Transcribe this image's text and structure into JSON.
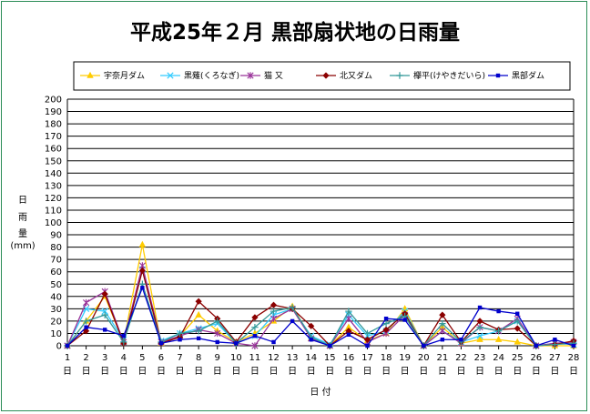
{
  "chart_data": {
    "type": "line",
    "title": "平成25年２月  黒部扇状地の日雨量",
    "xlabel": "日 付",
    "ylabel": [
      "日",
      "雨",
      "量",
      "(mm)"
    ],
    "x_unit": "日",
    "categories": [
      "1",
      "2",
      "3",
      "4",
      "5",
      "6",
      "7",
      "8",
      "9",
      "10",
      "11",
      "12",
      "13",
      "14",
      "15",
      "16",
      "17",
      "18",
      "19",
      "20",
      "21",
      "22",
      "23",
      "24",
      "25",
      "26",
      "27",
      "28"
    ],
    "yticks": [
      0,
      10,
      20,
      30,
      40,
      50,
      60,
      70,
      80,
      90,
      100,
      110,
      120,
      130,
      140,
      150,
      160,
      170,
      180,
      190,
      200
    ],
    "ylim": [
      0,
      200
    ],
    "grid": true,
    "legend_position": "top",
    "series": [
      {
        "name": "宇奈月ダム",
        "color": "#ffcc00",
        "marker": "triangle",
        "values": [
          0,
          20,
          40,
          3,
          82,
          2,
          8,
          25,
          12,
          3,
          10,
          20,
          32,
          6,
          0,
          15,
          4,
          10,
          30,
          0,
          15,
          2,
          5,
          5,
          3,
          0,
          0,
          0
        ]
      },
      {
        "name": "黒薙(くろなぎ)",
        "color": "#33ccff",
        "marker": "x",
        "values": [
          0,
          30,
          28,
          5,
          62,
          4,
          10,
          14,
          18,
          2,
          8,
          25,
          30,
          8,
          1,
          25,
          8,
          12,
          28,
          0,
          12,
          3,
          8,
          12,
          20,
          0,
          2,
          1
        ]
      },
      {
        "name": "猫 又",
        "color": "#993399",
        "marker": "star",
        "values": [
          0,
          35,
          44,
          3,
          65,
          3,
          8,
          13,
          10,
          2,
          0,
          22,
          30,
          6,
          0,
          22,
          3,
          10,
          25,
          0,
          12,
          2,
          15,
          12,
          22,
          0,
          2,
          3
        ]
      },
      {
        "name": "北又ダム",
        "color": "#8b0000",
        "marker": "diamond",
        "values": [
          0,
          12,
          42,
          2,
          61,
          2,
          7,
          36,
          22,
          3,
          23,
          33,
          30,
          16,
          0,
          12,
          5,
          13,
          26,
          0,
          25,
          3,
          20,
          13,
          14,
          0,
          1,
          4
        ]
      },
      {
        "name": "欅平(けやきだいら)",
        "color": "#339999",
        "marker": "plus",
        "values": [
          0,
          20,
          25,
          3,
          50,
          3,
          10,
          12,
          20,
          2,
          15,
          28,
          31,
          7,
          0,
          28,
          10,
          18,
          24,
          0,
          18,
          3,
          15,
          12,
          20,
          0,
          1,
          2
        ]
      },
      {
        "name": "黒部ダム",
        "color": "#0000cc",
        "marker": "square",
        "values": [
          0,
          15,
          13,
          8,
          47,
          2,
          5,
          6,
          3,
          2,
          8,
          3,
          20,
          5,
          0,
          9,
          0,
          22,
          21,
          0,
          5,
          5,
          31,
          28,
          26,
          0,
          5,
          0
        ]
      }
    ]
  }
}
